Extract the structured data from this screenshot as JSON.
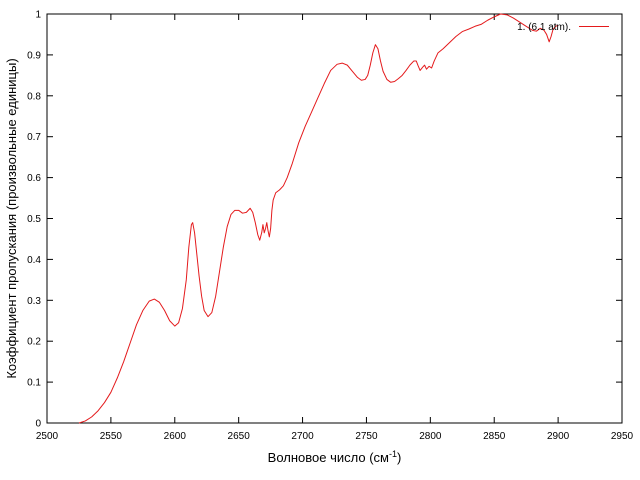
{
  "chart_data": {
    "type": "line",
    "title": "",
    "xlabel_main": "Волновое число (см",
    "xlabel_sup": "-1",
    "xlabel_close": ")",
    "ylabel": "Коэффициент пропускания (произвольные единицы)",
    "xlim": [
      2500,
      2950
    ],
    "ylim": [
      0,
      1
    ],
    "x_ticks": [
      "2500",
      "2550",
      "2600",
      "2650",
      "2700",
      "2750",
      "2800",
      "2850",
      "2900",
      "2950"
    ],
    "y_ticks": [
      "0",
      "0.1",
      "0.2",
      "0.3",
      "0.4",
      "0.5",
      "0.6",
      "0.7",
      "0.8",
      "0.9",
      "1"
    ],
    "grid": false,
    "legend_position": "top-right",
    "series": [
      {
        "name": "1. (6.1 atm).",
        "color": "#e41a1c",
        "points": [
          [
            2525,
            0.0
          ],
          [
            2530,
            0.005
          ],
          [
            2535,
            0.015
          ],
          [
            2540,
            0.03
          ],
          [
            2545,
            0.05
          ],
          [
            2550,
            0.075
          ],
          [
            2555,
            0.11
          ],
          [
            2560,
            0.15
          ],
          [
            2565,
            0.195
          ],
          [
            2570,
            0.24
          ],
          [
            2575,
            0.275
          ],
          [
            2580,
            0.298
          ],
          [
            2584,
            0.303
          ],
          [
            2588,
            0.295
          ],
          [
            2592,
            0.275
          ],
          [
            2596,
            0.25
          ],
          [
            2600,
            0.237
          ],
          [
            2603,
            0.245
          ],
          [
            2606,
            0.28
          ],
          [
            2609,
            0.35
          ],
          [
            2611,
            0.43
          ],
          [
            2613,
            0.485
          ],
          [
            2614,
            0.49
          ],
          [
            2615.5,
            0.465
          ],
          [
            2617,
            0.42
          ],
          [
            2619,
            0.36
          ],
          [
            2621,
            0.31
          ],
          [
            2623,
            0.275
          ],
          [
            2626,
            0.26
          ],
          [
            2629,
            0.27
          ],
          [
            2632,
            0.31
          ],
          [
            2635,
            0.37
          ],
          [
            2638,
            0.43
          ],
          [
            2641,
            0.48
          ],
          [
            2644,
            0.51
          ],
          [
            2647,
            0.52
          ],
          [
            2650,
            0.52
          ],
          [
            2653,
            0.513
          ],
          [
            2656,
            0.515
          ],
          [
            2659,
            0.525
          ],
          [
            2661,
            0.515
          ],
          [
            2663,
            0.49
          ],
          [
            2665,
            0.46
          ],
          [
            2666.5,
            0.447
          ],
          [
            2668,
            0.465
          ],
          [
            2669,
            0.485
          ],
          [
            2670,
            0.465
          ],
          [
            2671,
            0.475
          ],
          [
            2672,
            0.49
          ],
          [
            2673,
            0.47
          ],
          [
            2674,
            0.455
          ],
          [
            2675,
            0.475
          ],
          [
            2676,
            0.52
          ],
          [
            2677,
            0.545
          ],
          [
            2679,
            0.563
          ],
          [
            2682,
            0.57
          ],
          [
            2685,
            0.58
          ],
          [
            2688,
            0.6
          ],
          [
            2692,
            0.635
          ],
          [
            2697,
            0.685
          ],
          [
            2702,
            0.725
          ],
          [
            2707,
            0.76
          ],
          [
            2712,
            0.795
          ],
          [
            2717,
            0.83
          ],
          [
            2722,
            0.862
          ],
          [
            2727,
            0.877
          ],
          [
            2731,
            0.88
          ],
          [
            2735,
            0.875
          ],
          [
            2739,
            0.86
          ],
          [
            2743,
            0.845
          ],
          [
            2746,
            0.838
          ],
          [
            2749,
            0.84
          ],
          [
            2751,
            0.85
          ],
          [
            2753,
            0.875
          ],
          [
            2755,
            0.905
          ],
          [
            2757,
            0.925
          ],
          [
            2759,
            0.915
          ],
          [
            2761,
            0.885
          ],
          [
            2763,
            0.86
          ],
          [
            2766,
            0.84
          ],
          [
            2769,
            0.833
          ],
          [
            2772,
            0.835
          ],
          [
            2775,
            0.842
          ],
          [
            2778,
            0.85
          ],
          [
            2781,
            0.862
          ],
          [
            2784,
            0.875
          ],
          [
            2787,
            0.885
          ],
          [
            2789,
            0.885
          ],
          [
            2790.5,
            0.873
          ],
          [
            2792,
            0.862
          ],
          [
            2794,
            0.87
          ],
          [
            2795.5,
            0.875
          ],
          [
            2797,
            0.865
          ],
          [
            2799,
            0.872
          ],
          [
            2801,
            0.868
          ],
          [
            2803,
            0.885
          ],
          [
            2806,
            0.905
          ],
          [
            2810,
            0.915
          ],
          [
            2815,
            0.93
          ],
          [
            2820,
            0.945
          ],
          [
            2825,
            0.957
          ],
          [
            2830,
            0.963
          ],
          [
            2835,
            0.97
          ],
          [
            2840,
            0.975
          ],
          [
            2845,
            0.985
          ],
          [
            2850,
            0.993
          ],
          [
            2855,
            1.0
          ],
          [
            2860,
            0.998
          ],
          [
            2865,
            0.99
          ],
          [
            2870,
            0.98
          ],
          [
            2875,
            0.97
          ],
          [
            2880,
            0.96
          ],
          [
            2883,
            0.958
          ],
          [
            2886,
            0.965
          ],
          [
            2889,
            0.96
          ],
          [
            2891,
            0.95
          ],
          [
            2893,
            0.932
          ],
          [
            2894.5,
            0.945
          ],
          [
            2896,
            0.962
          ],
          [
            2898,
            0.97
          ],
          [
            2900,
            0.972
          ]
        ]
      }
    ]
  }
}
